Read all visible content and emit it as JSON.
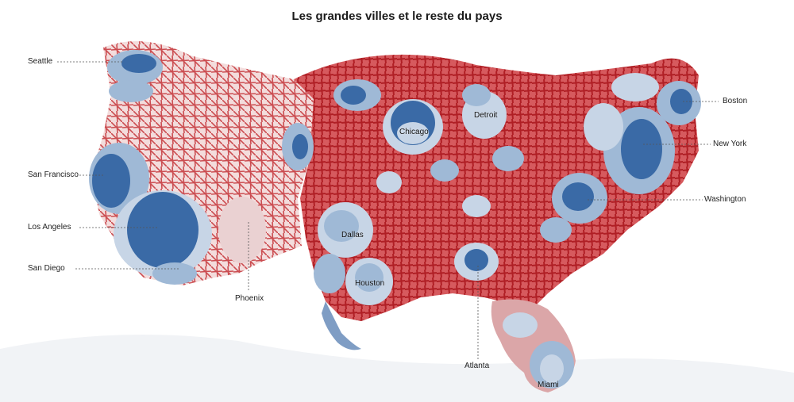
{
  "title": "Les grandes villes et le reste du pays",
  "colors": {
    "rural_red": "#c0282d",
    "urban_blue": "#3a6aa6",
    "light_blue": "#9fb9d6",
    "pale_blue": "#d9e3ee",
    "pale_red": "#e8c3c4"
  },
  "labels": {
    "outside": {
      "seattle": "Seattle",
      "san_francisco": "San Francisco",
      "los_angeles": "Los Angeles",
      "san_diego": "San Diego",
      "phoenix": "Phoenix",
      "atlanta": "Atlanta",
      "boston": "Boston",
      "new_york": "New York",
      "washington": "Washington"
    },
    "inside": {
      "chicago": "Chicago",
      "detroit": "Detroit",
      "dallas": "Dallas",
      "houston": "Houston",
      "miami": "Miami"
    }
  }
}
